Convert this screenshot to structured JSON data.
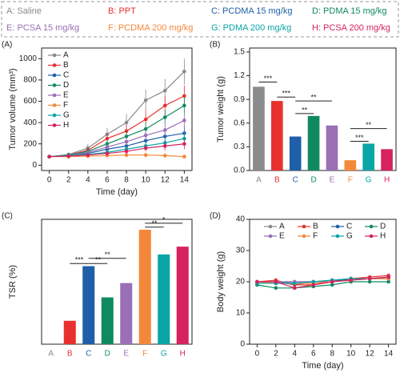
{
  "legend": [
    {
      "label": "A: Saline",
      "color": "#8a8a8a"
    },
    {
      "label": "B: PPT",
      "color": "#e8312f"
    },
    {
      "label": "C: PCDMA 15 mg/kg",
      "color": "#1f5fa8"
    },
    {
      "label": "D: PDMA 15 mg/kg",
      "color": "#0f8a5f"
    },
    {
      "label": "E: PCSA 15 mg/kg",
      "color": "#9b6fb5"
    },
    {
      "label": "F: PCDMA 200 mg/kg",
      "color": "#f4883a"
    },
    {
      "label": "G: PDMA 200 mg/kg",
      "color": "#0aa5a5"
    },
    {
      "label": "H: PCSA 200 mg/kg",
      "color": "#d6225f"
    }
  ],
  "chart_data": [
    {
      "type": "line",
      "panel": "(A)",
      "x_label": "Time (day)",
      "y_label": "Tumor volume (mm³)",
      "x": [
        0,
        2,
        4,
        6,
        8,
        10,
        12,
        14
      ],
      "xlim": [
        -0.8,
        14.8
      ],
      "xticks": [
        0,
        2,
        4,
        6,
        8,
        10,
        12,
        14
      ],
      "ylim": [
        -50,
        1100
      ],
      "yticks": [
        0,
        200,
        400,
        600,
        800,
        1000
      ],
      "legend": "upper left",
      "series": [
        {
          "name": "A",
          "color": "#8a8a8a",
          "values": [
            80,
            100,
            160,
            290,
            400,
            610,
            700,
            880
          ],
          "errors": [
            10,
            20,
            40,
            60,
            80,
            100,
            110,
            120
          ]
        },
        {
          "name": "B",
          "color": "#e8312f",
          "values": [
            80,
            95,
            140,
            250,
            320,
            430,
            560,
            650
          ],
          "errors": [
            10,
            15,
            30,
            50,
            60,
            80,
            90,
            100
          ]
        },
        {
          "name": "C",
          "color": "#1f5fa8",
          "values": [
            80,
            90,
            110,
            150,
            180,
            230,
            270,
            300
          ],
          "errors": [
            10,
            15,
            20,
            30,
            40,
            50,
            60,
            70
          ]
        },
        {
          "name": "D",
          "color": "#0f8a5f",
          "values": [
            80,
            95,
            130,
            200,
            270,
            340,
            450,
            560
          ],
          "errors": [
            10,
            15,
            25,
            40,
            50,
            60,
            70,
            80
          ]
        },
        {
          "name": "E",
          "color": "#9b6fb5",
          "values": [
            80,
            90,
            120,
            170,
            220,
            280,
            330,
            420
          ],
          "errors": [
            10,
            15,
            20,
            30,
            40,
            50,
            60,
            70
          ]
        },
        {
          "name": "F",
          "color": "#f4883a",
          "values": [
            80,
            80,
            85,
            90,
            95,
            95,
            90,
            80
          ],
          "errors": [
            10,
            10,
            15,
            15,
            20,
            20,
            20,
            20
          ]
        },
        {
          "name": "G",
          "color": "#0aa5a5",
          "values": [
            80,
            90,
            100,
            120,
            150,
            180,
            210,
            250
          ],
          "errors": [
            10,
            15,
            20,
            25,
            30,
            40,
            50,
            60
          ]
        },
        {
          "name": "H",
          "color": "#d6225f",
          "values": [
            80,
            85,
            95,
            110,
            130,
            160,
            180,
            200
          ],
          "errors": [
            10,
            10,
            15,
            20,
            25,
            30,
            40,
            50
          ]
        }
      ]
    },
    {
      "type": "bar",
      "panel": "(B)",
      "y_label": "Tumor weight (g)",
      "categories": [
        "A",
        "B",
        "C",
        "D",
        "E",
        "F",
        "G",
        "H"
      ],
      "values": [
        1.06,
        0.88,
        0.43,
        0.69,
        0.57,
        0.13,
        0.34,
        0.27
      ],
      "colors": [
        "#8a8a8a",
        "#e8312f",
        "#1f5fa8",
        "#0f8a5f",
        "#9b6fb5",
        "#f4883a",
        "#0aa5a5",
        "#d6225f"
      ],
      "ylim": [
        0,
        1.55
      ],
      "yticks": [
        {
          "value": 0,
          "label": "0.0"
        },
        0.3,
        0.6,
        0.9,
        1.2,
        1.5
      ],
      "annotations": [
        {
          "text": "***",
          "from": 0,
          "to": 1
        },
        {
          "text": "***",
          "from": 1,
          "to": 2
        },
        {
          "text": "**",
          "from": 2,
          "to": 4
        },
        {
          "text": "**",
          "from": 2,
          "to": 3
        },
        {
          "text": "***",
          "from": 5,
          "to": 6
        },
        {
          "text": "**",
          "from": 5,
          "to": 7
        }
      ]
    },
    {
      "type": "bar",
      "panel": "(C)",
      "y_label": "TSR (%)",
      "categories": [
        "A",
        "B",
        "C",
        "D",
        "E",
        "F",
        "G",
        "H"
      ],
      "values": [
        0,
        18,
        60,
        36,
        47,
        88,
        69,
        75
      ],
      "colors": [
        "#8a8a8a",
        "#e8312f",
        "#1f5fa8",
        "#0f8a5f",
        "#9b6fb5",
        "#f4883a",
        "#0aa5a5",
        "#d6225f"
      ],
      "ylim": [
        0,
        96
      ],
      "annotations": [
        {
          "text": "***",
          "from": 1,
          "to": 2
        },
        {
          "text": "**",
          "from": 2,
          "to": 3
        },
        {
          "text": "**",
          "from": 2,
          "to": 4
        },
        {
          "text": "**",
          "from": 5,
          "to": 6
        },
        {
          "text": "*",
          "from": 5,
          "to": 7
        }
      ]
    },
    {
      "type": "line",
      "panel": "(D)",
      "x_label": "Time (day)",
      "y_label": "Body weight (g)",
      "x": [
        0,
        2,
        4,
        6,
        8,
        10,
        12,
        14
      ],
      "xlim": [
        -0.8,
        14.8
      ],
      "xticks": [
        0,
        2,
        4,
        6,
        8,
        10,
        12,
        14
      ],
      "ylim": [
        0,
        40
      ],
      "yticks": [
        0,
        10,
        20,
        30,
        40
      ],
      "legend": "upper center",
      "series": [
        {
          "name": "A",
          "color": "#8a8a8a",
          "values": [
            20,
            20,
            19,
            20,
            20,
            21,
            21,
            21.5
          ]
        },
        {
          "name": "B",
          "color": "#e8312f",
          "values": [
            20,
            20.5,
            19,
            19,
            20,
            21,
            21.5,
            22
          ]
        },
        {
          "name": "C",
          "color": "#1f5fa8",
          "values": [
            19.5,
            19.5,
            20,
            20,
            20.5,
            20.5,
            21,
            21
          ]
        },
        {
          "name": "D",
          "color": "#0f8a5f",
          "values": [
            19,
            18,
            18,
            18.5,
            19,
            20,
            20,
            20
          ]
        },
        {
          "name": "E",
          "color": "#9b6fb5",
          "values": [
            20,
            20,
            20,
            20,
            20.5,
            21,
            21,
            21
          ]
        },
        {
          "name": "F",
          "color": "#f4883a",
          "values": [
            20,
            19.5,
            19.5,
            19.5,
            20,
            20.5,
            21,
            21
          ]
        },
        {
          "name": "G",
          "color": "#0aa5a5",
          "values": [
            19.5,
            19.5,
            19.5,
            20,
            20.5,
            21,
            21,
            21.5
          ]
        },
        {
          "name": "H",
          "color": "#d6225f",
          "values": [
            20,
            20,
            18,
            19,
            20,
            20.5,
            21,
            21.5
          ]
        }
      ]
    }
  ]
}
